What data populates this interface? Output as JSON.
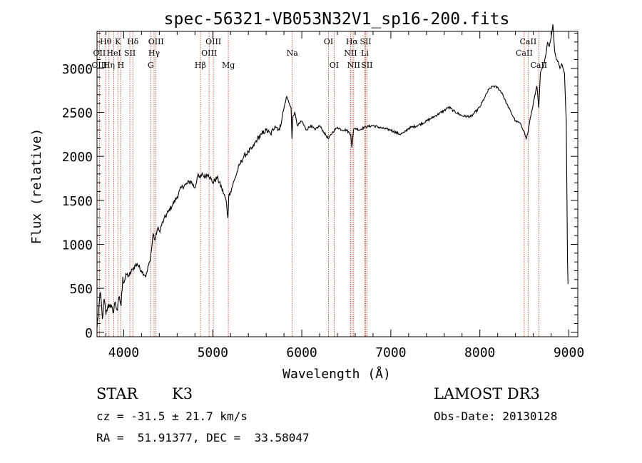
{
  "chart_data": {
    "type": "line",
    "title": "spec-56321-VB053N32V1_sp16-200.fits",
    "xlabel": "Wavelength (Å)",
    "ylabel": "Flux (relative)",
    "xlim": [
      3700,
      9100
    ],
    "ylim": [
      -50,
      3420
    ],
    "x_ticks": [
      4000,
      5000,
      6000,
      7000,
      8000,
      9000
    ],
    "y_ticks": [
      0,
      500,
      1000,
      1500,
      2000,
      2500,
      3000
    ],
    "x_tick_labels": [
      "4000",
      "5000",
      "6000",
      "7000",
      "8000",
      "9000"
    ],
    "y_tick_labels": [
      "0",
      "500",
      "1000",
      "1500",
      "2000",
      "2500",
      "3000"
    ],
    "series": [
      {
        "name": "spectrum",
        "x": [
          3700,
          3720,
          3740,
          3760,
          3780,
          3800,
          3820,
          3850,
          3880,
          3900,
          3930,
          3950,
          3970,
          3990,
          4000,
          4030,
          4060,
          4100,
          4150,
          4200,
          4250,
          4290,
          4310,
          4330,
          4350,
          4380,
          4400,
          4450,
          4500,
          4550,
          4600,
          4650,
          4700,
          4750,
          4800,
          4830,
          4860,
          4880,
          4900,
          4950,
          5000,
          5050,
          5100,
          5150,
          5170,
          5180,
          5200,
          5250,
          5300,
          5350,
          5400,
          5450,
          5500,
          5550,
          5600,
          5650,
          5700,
          5750,
          5780,
          5800,
          5830,
          5860,
          5880,
          5890,
          5900,
          5920,
          5950,
          6000,
          6050,
          6100,
          6150,
          6200,
          6250,
          6300,
          6350,
          6400,
          6450,
          6500,
          6550,
          6563,
          6580,
          6600,
          6650,
          6700,
          6800,
          6900,
          7000,
          7100,
          7150,
          7200,
          7300,
          7400,
          7500,
          7600,
          7650,
          7700,
          7800,
          7900,
          8000,
          8050,
          8100,
          8150,
          8200,
          8250,
          8300,
          8350,
          8400,
          8450,
          8498,
          8520,
          8542,
          8560,
          8600,
          8640,
          8662,
          8680,
          8700,
          8720,
          8740,
          8760,
          8780,
          8800,
          8820,
          8840,
          8860,
          8880,
          8900,
          8920,
          8950,
          8970,
          8985,
          8990
        ],
        "y": [
          50,
          280,
          450,
          150,
          380,
          200,
          290,
          320,
          220,
          340,
          250,
          410,
          300,
          630,
          560,
          660,
          640,
          720,
          780,
          700,
          640,
          800,
          920,
          1120,
          1050,
          1180,
          1150,
          1280,
          1370,
          1450,
          1540,
          1650,
          1680,
          1720,
          1640,
          1780,
          1750,
          1810,
          1770,
          1800,
          1700,
          1760,
          1640,
          1500,
          1300,
          1550,
          1600,
          1750,
          1900,
          2000,
          2050,
          2100,
          2200,
          2250,
          2300,
          2250,
          2350,
          2300,
          2450,
          2550,
          2680,
          2600,
          2550,
          2200,
          2450,
          2500,
          2350,
          2400,
          2300,
          2350,
          2300,
          2350,
          2270,
          2200,
          2280,
          2330,
          2300,
          2300,
          2250,
          2100,
          2300,
          2320,
          2300,
          2330,
          2350,
          2320,
          2300,
          2250,
          2270,
          2320,
          2350,
          2400,
          2460,
          2520,
          2560,
          2520,
          2460,
          2450,
          2560,
          2660,
          2760,
          2800,
          2780,
          2720,
          2600,
          2500,
          2400,
          2380,
          2280,
          2200,
          2280,
          2400,
          2600,
          2800,
          2550,
          2950,
          3000,
          3050,
          3150,
          3300,
          3250,
          3350,
          3500,
          3200,
          3100,
          3080,
          3000,
          3050,
          2950,
          2400,
          800,
          550
        ]
      }
    ],
    "spectral_lines": [
      {
        "label": "Hθ",
        "x": 3798,
        "row": 1
      },
      {
        "label": "OII",
        "x": 3727,
        "row": 2
      },
      {
        "label": "OIII",
        "x": 3727,
        "row": 3
      },
      {
        "label": "K",
        "x": 3934,
        "row": 1
      },
      {
        "label": "HeI",
        "x": 3889,
        "row": 2
      },
      {
        "label": "Hη",
        "x": 3835,
        "row": 3
      },
      {
        "label": "SII",
        "x": 4069,
        "row": 2
      },
      {
        "label": "H",
        "x": 3968,
        "row": 3
      },
      {
        "label": "Hδ",
        "x": 4102,
        "row": 1
      },
      {
        "label": "OIII",
        "x": 4363,
        "row": 1
      },
      {
        "label": "Hγ",
        "x": 4341,
        "row": 2
      },
      {
        "label": "G",
        "x": 4304,
        "row": 3
      },
      {
        "label": "OIII",
        "x": 5007,
        "row": 1
      },
      {
        "label": "OIII",
        "x": 4959,
        "row": 2
      },
      {
        "label": "Hβ",
        "x": 4861,
        "row": 3
      },
      {
        "label": "Mg",
        "x": 5175,
        "row": 3
      },
      {
        "label": "Na",
        "x": 5893,
        "row": 2
      },
      {
        "label": "OI",
        "x": 6300,
        "row": 1
      },
      {
        "label": "OI",
        "x": 6363,
        "row": 3
      },
      {
        "label": "Hα",
        "x": 6563,
        "row": 1
      },
      {
        "label": "SII",
        "x": 6717,
        "row": 1
      },
      {
        "label": "NII",
        "x": 6548,
        "row": 2
      },
      {
        "label": "Li",
        "x": 6708,
        "row": 2
      },
      {
        "label": "NII",
        "x": 6583,
        "row": 3
      },
      {
        "label": "SII",
        "x": 6731,
        "row": 3
      },
      {
        "label": "CaII",
        "x": 8542,
        "row": 1
      },
      {
        "label": "CaII",
        "x": 8498,
        "row": 2
      },
      {
        "label": "CaII",
        "x": 8662,
        "row": 3
      }
    ]
  },
  "info": {
    "class_label": "STAR",
    "subclass": "K3",
    "survey": "LAMOST DR3",
    "redshift": "cz = -31.5 ± 21.7 km/s",
    "obs_date": "Obs-Date: 20130128",
    "coords": "RA =  51.91377, DEC =  33.58047"
  }
}
